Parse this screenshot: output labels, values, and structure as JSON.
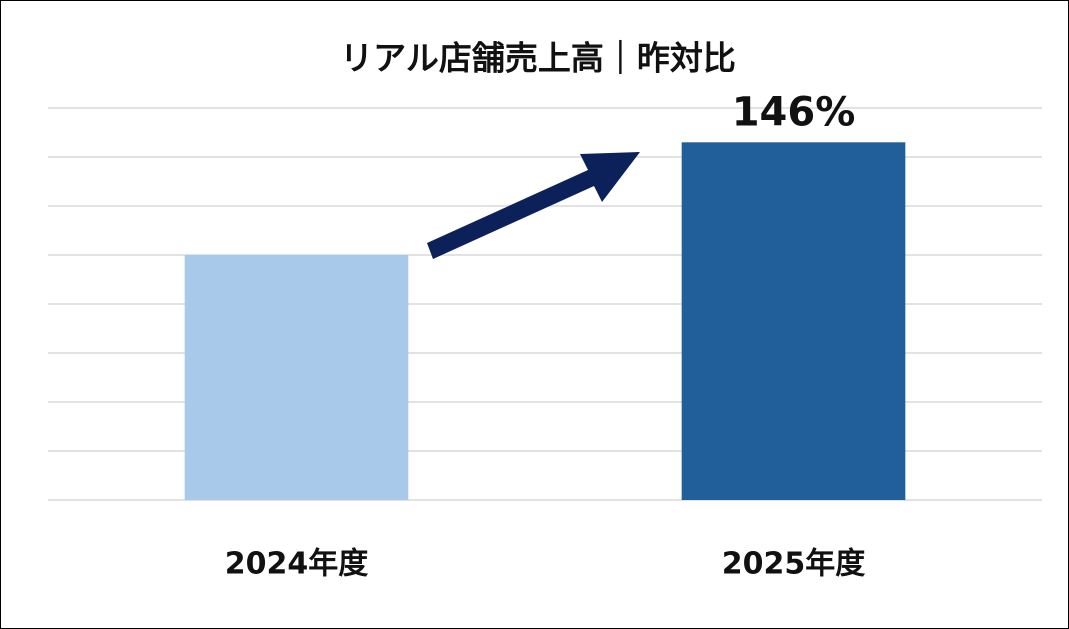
{
  "chart_data": {
    "type": "bar",
    "title": "リアル店舗売上高｜昨対比",
    "categories": [
      "2024年度",
      "2025年度"
    ],
    "values": [
      100,
      146
    ],
    "value_labels": [
      null,
      "146%"
    ],
    "colors": [
      "#a9c9ea",
      "#215f9a"
    ],
    "ylim": [
      0,
      160
    ],
    "yticks": [
      0,
      20,
      40,
      60,
      80,
      100,
      120,
      140,
      160
    ],
    "grid": true
  }
}
